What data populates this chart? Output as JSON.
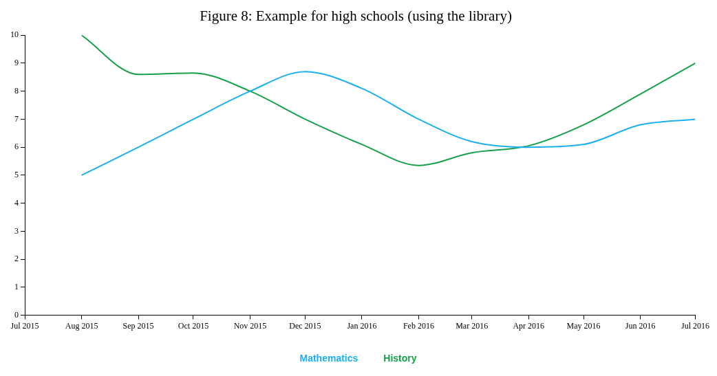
{
  "chart_data": {
    "type": "line",
    "title": "Figure 8: Example for high schools (using the library)",
    "x": [
      "2015-08",
      "2015-09",
      "2015-10",
      "2015-11",
      "2015-12",
      "2016-01",
      "2016-02",
      "2016-03",
      "2016-04",
      "2016-05",
      "2016-06",
      "2016-07"
    ],
    "series": [
      {
        "name": "Mathematics",
        "color": "#1ab0f0",
        "values": [
          5,
          6,
          7,
          8,
          8.7,
          8.1,
          7,
          6.2,
          6,
          6.1,
          6.8,
          7
        ]
      },
      {
        "name": "History",
        "color": "#16a04a",
        "values": [
          10,
          8.6,
          8.65,
          8,
          7,
          6.1,
          5.35,
          5.8,
          6.05,
          6.8,
          7.9,
          9
        ]
      }
    ],
    "xlim": [
      "2015-07",
      "2016-07"
    ],
    "xticks": [
      {
        "value": "2015-07",
        "label": "Jul 2015"
      },
      {
        "value": "2015-08",
        "label": "Aug 2015"
      },
      {
        "value": "2015-09",
        "label": "Sep 2015"
      },
      {
        "value": "2015-10",
        "label": "Oct 2015"
      },
      {
        "value": "2015-11",
        "label": "Nov 2015"
      },
      {
        "value": "2015-12",
        "label": "Dec 2015"
      },
      {
        "value": "2016-01",
        "label": "Jan 2016"
      },
      {
        "value": "2016-02",
        "label": "Feb 2016"
      },
      {
        "value": "2016-03",
        "label": "Mar 2016"
      },
      {
        "value": "2016-04",
        "label": "Apr 2016"
      },
      {
        "value": "2016-05",
        "label": "May 2016"
      },
      {
        "value": "2016-06",
        "label": "Jun 2016"
      },
      {
        "value": "2016-07",
        "label": "Jul 2016"
      }
    ],
    "ylim": [
      0,
      10
    ],
    "yticks": [
      0,
      1,
      2,
      3,
      4,
      5,
      6,
      7,
      8,
      9,
      10
    ],
    "grid": false,
    "legend": "bottom",
    "marker": "none",
    "line_style": "solid"
  }
}
